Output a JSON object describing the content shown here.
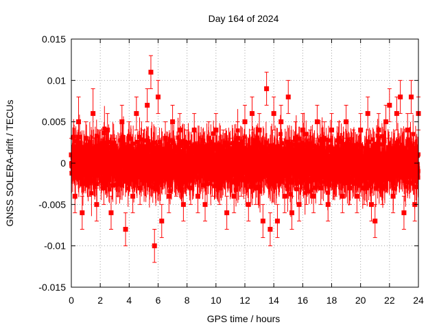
{
  "chart_data": {
    "type": "scatter",
    "title": "Day 164 of 2024",
    "xlabel": "GPS time / hours",
    "ylabel": "GNSS SOLERA-drift / TECUs",
    "xlim": [
      0,
      24
    ],
    "ylim": [
      -0.015,
      0.015
    ],
    "xticks": [
      0,
      2,
      4,
      6,
      8,
      10,
      12,
      14,
      16,
      18,
      20,
      22,
      24
    ],
    "yticks": [
      -0.015,
      -0.01,
      -0.005,
      0,
      0.005,
      0.01,
      0.015
    ],
    "xtick_labels": [
      "0",
      "2",
      "4",
      "6",
      "8",
      "10",
      "12",
      "14",
      "16",
      "18",
      "20",
      "22",
      "24"
    ],
    "ytick_labels": [
      "-0.015",
      "-0.01",
      "-0.005",
      "0",
      "0.005",
      "0.01",
      "0.015"
    ],
    "grid": true,
    "legend": "none",
    "marker": "filled-square",
    "error_bars": true,
    "series_color": "#ff0000",
    "series": [
      {
        "x": [
          0.0,
          0.25,
          0.5,
          0.75,
          1.0,
          1.25,
          1.5,
          1.75,
          2.0,
          2.25,
          2.5,
          2.75,
          3.0,
          3.25,
          3.5,
          3.75,
          4.0,
          4.25,
          4.5,
          4.75,
          5.0,
          5.25,
          5.5,
          5.75,
          6.0,
          6.25,
          6.5,
          6.75,
          7.0,
          7.25,
          7.5,
          7.75,
          8.0,
          8.25,
          8.5,
          8.75,
          9.0,
          9.25,
          9.5,
          9.75,
          10.0,
          10.25,
          10.5,
          10.75,
          11.0,
          11.25,
          11.5,
          11.75,
          12.0,
          12.25,
          12.5,
          12.75,
          13.0,
          13.25,
          13.5,
          13.75,
          14.0,
          14.25,
          14.5,
          14.75,
          15.0,
          15.25,
          15.5,
          15.75,
          16.0,
          16.25,
          16.5,
          16.75,
          17.0,
          17.25,
          17.5,
          17.75,
          18.0,
          18.25,
          18.5,
          18.75,
          19.0,
          19.25,
          19.5,
          19.75,
          20.0,
          20.25,
          20.5,
          20.75,
          21.0,
          21.25,
          21.5,
          21.75,
          22.0,
          22.25,
          22.5,
          22.75,
          23.0,
          23.25,
          23.5,
          23.75,
          24.0
        ],
        "y": [
          0.001,
          -0.004,
          0.005,
          -0.006,
          0.003,
          -0.002,
          0.006,
          -0.005,
          0.002,
          -0.003,
          0.004,
          -0.006,
          0.001,
          -0.002,
          0.005,
          -0.008,
          0.003,
          -0.004,
          0.006,
          -0.003,
          0.002,
          0.007,
          0.011,
          -0.01,
          0.008,
          -0.007,
          0.003,
          -0.004,
          0.005,
          -0.002,
          0.004,
          -0.005,
          0.002,
          -0.003,
          0.004,
          -0.004,
          0.001,
          -0.005,
          0.003,
          -0.002,
          0.004,
          -0.003,
          0.002,
          -0.006,
          0.001,
          -0.004,
          0.003,
          -0.002,
          0.005,
          -0.005,
          0.006,
          -0.003,
          0.004,
          -0.007,
          0.009,
          -0.008,
          0.006,
          -0.007,
          0.005,
          -0.004,
          0.008,
          -0.006,
          0.003,
          -0.005,
          0.004,
          -0.003,
          0.002,
          -0.004,
          0.005,
          -0.003,
          0.003,
          -0.005,
          0.004,
          -0.002,
          0.003,
          -0.004,
          0.005,
          -0.003,
          0.002,
          -0.004,
          0.004,
          -0.003,
          0.006,
          -0.005,
          -0.007,
          0.004,
          -0.003,
          0.005,
          0.007,
          -0.004,
          0.006,
          0.008,
          -0.006,
          0.004,
          0.008,
          -0.005,
          0.006
        ],
        "err": [
          0.002,
          0.002,
          0.003,
          0.002,
          0.002,
          0.002,
          0.003,
          0.002,
          0.002,
          0.002,
          0.002,
          0.002,
          0.002,
          0.002,
          0.002,
          0.002,
          0.002,
          0.002,
          0.002,
          0.002,
          0.002,
          0.002,
          0.002,
          0.002,
          0.002,
          0.002,
          0.002,
          0.002,
          0.002,
          0.002,
          0.002,
          0.002,
          0.002,
          0.002,
          0.002,
          0.002,
          0.002,
          0.002,
          0.002,
          0.002,
          0.002,
          0.002,
          0.002,
          0.002,
          0.002,
          0.002,
          0.002,
          0.002,
          0.002,
          0.002,
          0.002,
          0.002,
          0.002,
          0.002,
          0.002,
          0.002,
          0.002,
          0.002,
          0.002,
          0.002,
          0.002,
          0.002,
          0.002,
          0.002,
          0.002,
          0.002,
          0.002,
          0.002,
          0.002,
          0.002,
          0.002,
          0.002,
          0.002,
          0.002,
          0.002,
          0.002,
          0.002,
          0.002,
          0.002,
          0.002,
          0.002,
          0.002,
          0.002,
          0.002,
          0.002,
          0.002,
          0.002,
          0.002,
          0.002,
          0.002,
          0.002,
          0.002,
          0.002,
          0.002,
          0.002,
          0.002,
          0.002
        ]
      }
    ]
  }
}
